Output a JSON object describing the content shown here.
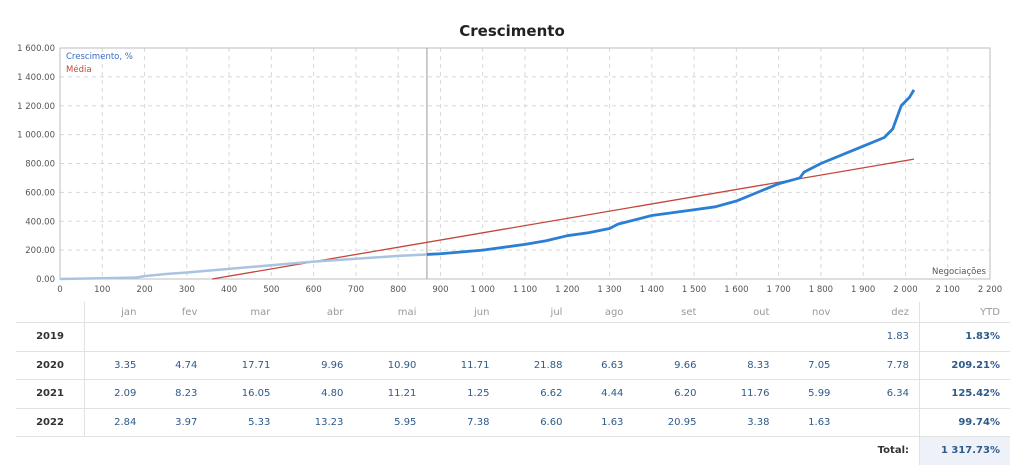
{
  "chart_data": {
    "type": "line",
    "title": "Crescimento",
    "xlabel": "Negociações",
    "ylabel": "",
    "xlim": [
      0,
      2200
    ],
    "ylim": [
      0,
      1600
    ],
    "x_ticks": [
      "0",
      "100",
      "200",
      "300",
      "400",
      "500",
      "600",
      "700",
      "800",
      "900",
      "1 000",
      "1 100",
      "1 200",
      "1 300",
      "1 400",
      "1 500",
      "1 600",
      "1 700",
      "1 800",
      "1 900",
      "2 000",
      "2 100",
      "2 200"
    ],
    "y_ticks": [
      "0.00",
      "200.00",
      "400.00",
      "600.00",
      "800.00",
      "1 000.00",
      "1 200.00",
      "1 400.00",
      "1 600.00"
    ],
    "grid": true,
    "legend_position": "top-left",
    "marker_x": 868,
    "series": [
      {
        "name": "Crescimento, %",
        "color": "#2a7fd4",
        "history_color": "#a9c4e0",
        "x": [
          0,
          100,
          180,
          200,
          250,
          300,
          400,
          500,
          600,
          700,
          800,
          868,
          900,
          1000,
          1100,
          1150,
          1200,
          1250,
          1300,
          1320,
          1400,
          1450,
          1500,
          1550,
          1600,
          1650,
          1700,
          1750,
          1760,
          1800,
          1850,
          1900,
          1950,
          1970,
          1990,
          2010,
          2020
        ],
        "values": [
          0,
          5,
          10,
          20,
          35,
          45,
          70,
          95,
          120,
          140,
          160,
          170,
          175,
          200,
          240,
          265,
          300,
          320,
          350,
          380,
          440,
          460,
          480,
          500,
          540,
          600,
          660,
          700,
          740,
          800,
          860,
          920,
          980,
          1040,
          1200,
          1260,
          1310
        ]
      },
      {
        "name": "Média",
        "color": "#c4453c",
        "x": [
          360,
          2020
        ],
        "values": [
          0,
          830
        ]
      }
    ]
  },
  "table": {
    "headers": [
      "",
      "jan",
      "fev",
      "mar",
      "abr",
      "mai",
      "jun",
      "jul",
      "ago",
      "set",
      "out",
      "nov",
      "dez",
      "YTD"
    ],
    "rows": [
      {
        "year": "2019",
        "values": [
          "",
          "",
          "",
          "",
          "",
          "",
          "",
          "",
          "",
          "",
          "",
          "1.83"
        ],
        "ytd": "1.83%"
      },
      {
        "year": "2020",
        "values": [
          "3.35",
          "4.74",
          "17.71",
          "9.96",
          "10.90",
          "11.71",
          "21.88",
          "6.63",
          "9.66",
          "8.33",
          "7.05",
          "7.78"
        ],
        "ytd": "209.21%"
      },
      {
        "year": "2021",
        "values": [
          "2.09",
          "8.23",
          "16.05",
          "4.80",
          "11.21",
          "1.25",
          "6.62",
          "4.44",
          "6.20",
          "11.76",
          "5.99",
          "6.34"
        ],
        "ytd": "125.42%"
      },
      {
        "year": "2022",
        "values": [
          "2.84",
          "3.97",
          "5.33",
          "13.23",
          "5.95",
          "7.38",
          "6.60",
          "1.63",
          "20.95",
          "3.38",
          "1.63",
          ""
        ],
        "ytd": "99.74%"
      }
    ],
    "total_label": "Total:",
    "total_value": "1 317.73%"
  }
}
